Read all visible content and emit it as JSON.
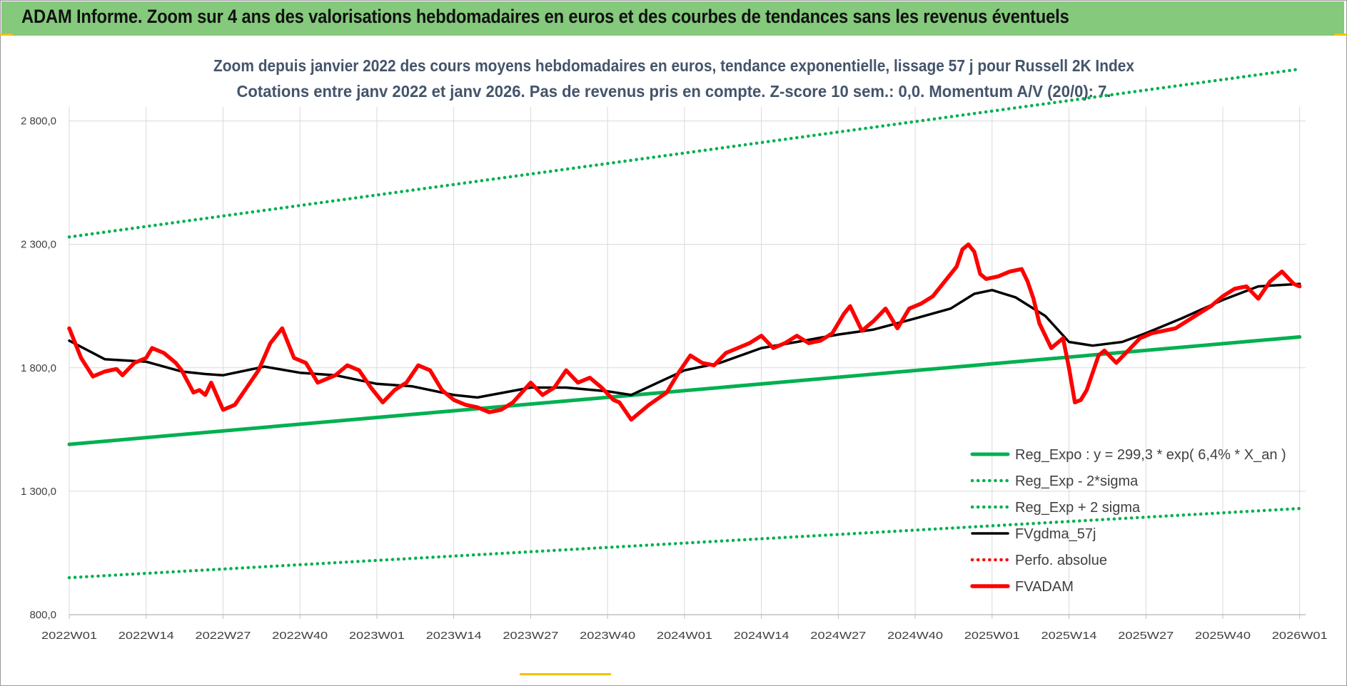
{
  "header": {
    "title": "ADAM Informe. Zoom sur 4 ans des valorisations hebdomadaires en euros et des courbes de tendances sans les revenus éventuels"
  },
  "colors": {
    "banner": "#84c97c",
    "regression": "#00b050",
    "fvgdma": "#000000",
    "fvadam": "#ff0000",
    "perfo": "#ff0000",
    "grid": "#d9d9d9",
    "accent": "#f2c200"
  },
  "chart_data": {
    "type": "line",
    "title": "Zoom depuis janvier 2022 des cours moyens hebdomadaires en euros, tendance exponentielle, lissage 57 j pour Russell 2K Index",
    "subtitle": "Cotations entre janv 2022 et janv 2026. Pas de revenus pris en compte. Z-score 10 sem.: 0,0. Momentum A/V (20/0): 7.",
    "xlabel": "",
    "ylabel": "",
    "ylim": [
      800,
      2900
    ],
    "yticks": [
      800,
      1300,
      1800,
      2300,
      2800
    ],
    "ytick_labels": [
      "800,0",
      "1 300,0",
      "1 800,0",
      "2 300,0",
      "2 800,0"
    ],
    "x_tick_labels": [
      "2022W01",
      "2022W14",
      "2022W27",
      "2022W40",
      "2023W01",
      "2023W14",
      "2023W27",
      "2023W40",
      "2024W01",
      "2024W14",
      "2024W27",
      "2024W40",
      "2025W01",
      "2025W14",
      "2025W27",
      "2025W40",
      "2026W01"
    ],
    "grid": true,
    "legend_position": "bottom-right",
    "series": [
      {
        "name": "Reg_Expo : y = 299,3 * exp( 6,4% *  X_an )",
        "style": "solid-thick",
        "color": "#00b050",
        "x": [
          "2022W01",
          "2026W01"
        ],
        "y": [
          1490,
          1925
        ]
      },
      {
        "name": "Reg_Exp - 2*sigma",
        "style": "dotted",
        "color": "#00b050",
        "x": [
          "2022W01",
          "2026W01"
        ],
        "y": [
          950,
          1230
        ]
      },
      {
        "name": "Reg_Exp + 2 sigma",
        "style": "dotted",
        "color": "#00b050",
        "x": [
          "2022W01",
          "2026W01"
        ],
        "y": [
          2330,
          3010
        ]
      },
      {
        "name": "FVgdma_57j",
        "style": "solid",
        "color": "#000000",
        "x": [
          "2022W01",
          "2022W07",
          "2022W14",
          "2022W20",
          "2022W24",
          "2022W27",
          "2022W34",
          "2022W40",
          "2022W46",
          "2023W01",
          "2023W07",
          "2023W14",
          "2023W18",
          "2023W27",
          "2023W33",
          "2023W40",
          "2023W44",
          "2024W01",
          "2024W07",
          "2024W14",
          "2024W20",
          "2024W27",
          "2024W33",
          "2024W40",
          "2024W46",
          "2024W50",
          "2025W01",
          "2025W05",
          "2025W10",
          "2025W14",
          "2025W18",
          "2025W23",
          "2025W27",
          "2025W33",
          "2025W40",
          "2025W46",
          "2026W01"
        ],
        "y": [
          1910,
          1835,
          1825,
          1785,
          1775,
          1770,
          1805,
          1780,
          1770,
          1735,
          1725,
          1690,
          1680,
          1720,
          1720,
          1705,
          1690,
          1790,
          1820,
          1880,
          1905,
          1935,
          1955,
          2000,
          2040,
          2100,
          2115,
          2085,
          2010,
          1905,
          1890,
          1905,
          1940,
          2000,
          2075,
          2130,
          2140
        ]
      },
      {
        "name": "Perfo. absolue",
        "style": "dotted",
        "color": "#ff0000",
        "x": [],
        "y": []
      },
      {
        "name": "FVADAM",
        "style": "solid-thick",
        "color": "#ff0000",
        "x": [
          "2022W01",
          "2022W03",
          "2022W05",
          "2022W07",
          "2022W09",
          "2022W10",
          "2022W12",
          "2022W14",
          "2022W15",
          "2022W17",
          "2022W19",
          "2022W20",
          "2022W22",
          "2022W23",
          "2022W24",
          "2022W25",
          "2022W27",
          "2022W29",
          "2022W31",
          "2022W33",
          "2022W35",
          "2022W37",
          "2022W39",
          "2022W41",
          "2022W43",
          "2022W46",
          "2022W48",
          "2022W50",
          "2022W52",
          "2023W02",
          "2023W04",
          "2023W06",
          "2023W08",
          "2023W10",
          "2023W12",
          "2023W14",
          "2023W16",
          "2023W18",
          "2023W20",
          "2023W22",
          "2023W24",
          "2023W27",
          "2023W29",
          "2023W31",
          "2023W33",
          "2023W35",
          "2023W37",
          "2023W39",
          "2023W41",
          "2023W42",
          "2023W44",
          "2023W47",
          "2023W50",
          "2023W52",
          "2024W02",
          "2024W04",
          "2024W06",
          "2024W08",
          "2024W10",
          "2024W12",
          "2024W14",
          "2024W16",
          "2024W18",
          "2024W20",
          "2024W22",
          "2024W24",
          "2024W26",
          "2024W28",
          "2024W29",
          "2024W31",
          "2024W33",
          "2024W35",
          "2024W37",
          "2024W39",
          "2024W41",
          "2024W43",
          "2024W45",
          "2024W47",
          "2024W48",
          "2024W49",
          "2024W50",
          "2024W51",
          "2024W52",
          "2025W02",
          "2025W04",
          "2025W06",
          "2025W07",
          "2025W08",
          "2025W09",
          "2025W11",
          "2025W13",
          "2025W14",
          "2025W15",
          "2025W16",
          "2025W17",
          "2025W19",
          "2025W20",
          "2025W22",
          "2025W24",
          "2025W26",
          "2025W28",
          "2025W30",
          "2025W32",
          "2025W34",
          "2025W36",
          "2025W38",
          "2025W40",
          "2025W42",
          "2025W44",
          "2025W46",
          "2025W48",
          "2025W50",
          "2025W52",
          "2026W01"
        ],
        "y": [
          1960,
          1840,
          1765,
          1785,
          1795,
          1770,
          1820,
          1840,
          1880,
          1860,
          1820,
          1790,
          1700,
          1710,
          1690,
          1740,
          1630,
          1650,
          1720,
          1790,
          1900,
          1960,
          1840,
          1820,
          1740,
          1770,
          1810,
          1790,
          1720,
          1660,
          1710,
          1740,
          1810,
          1790,
          1710,
          1670,
          1650,
          1640,
          1620,
          1630,
          1660,
          1740,
          1690,
          1720,
          1790,
          1740,
          1760,
          1720,
          1670,
          1660,
          1590,
          1650,
          1700,
          1780,
          1850,
          1820,
          1810,
          1860,
          1880,
          1900,
          1930,
          1880,
          1900,
          1930,
          1900,
          1910,
          1940,
          2020,
          2050,
          1950,
          1990,
          2040,
          1960,
          2040,
          2060,
          2090,
          2150,
          2210,
          2280,
          2300,
          2270,
          2180,
          2160,
          2170,
          2190,
          2200,
          2150,
          2080,
          1980,
          1880,
          1920,
          1800,
          1660,
          1670,
          1710,
          1850,
          1870,
          1820,
          1870,
          1920,
          1940,
          1950,
          1960,
          1990,
          2020,
          2050,
          2090,
          2120,
          2130,
          2080,
          2150,
          2190,
          2140,
          2130
        ]
      }
    ]
  }
}
